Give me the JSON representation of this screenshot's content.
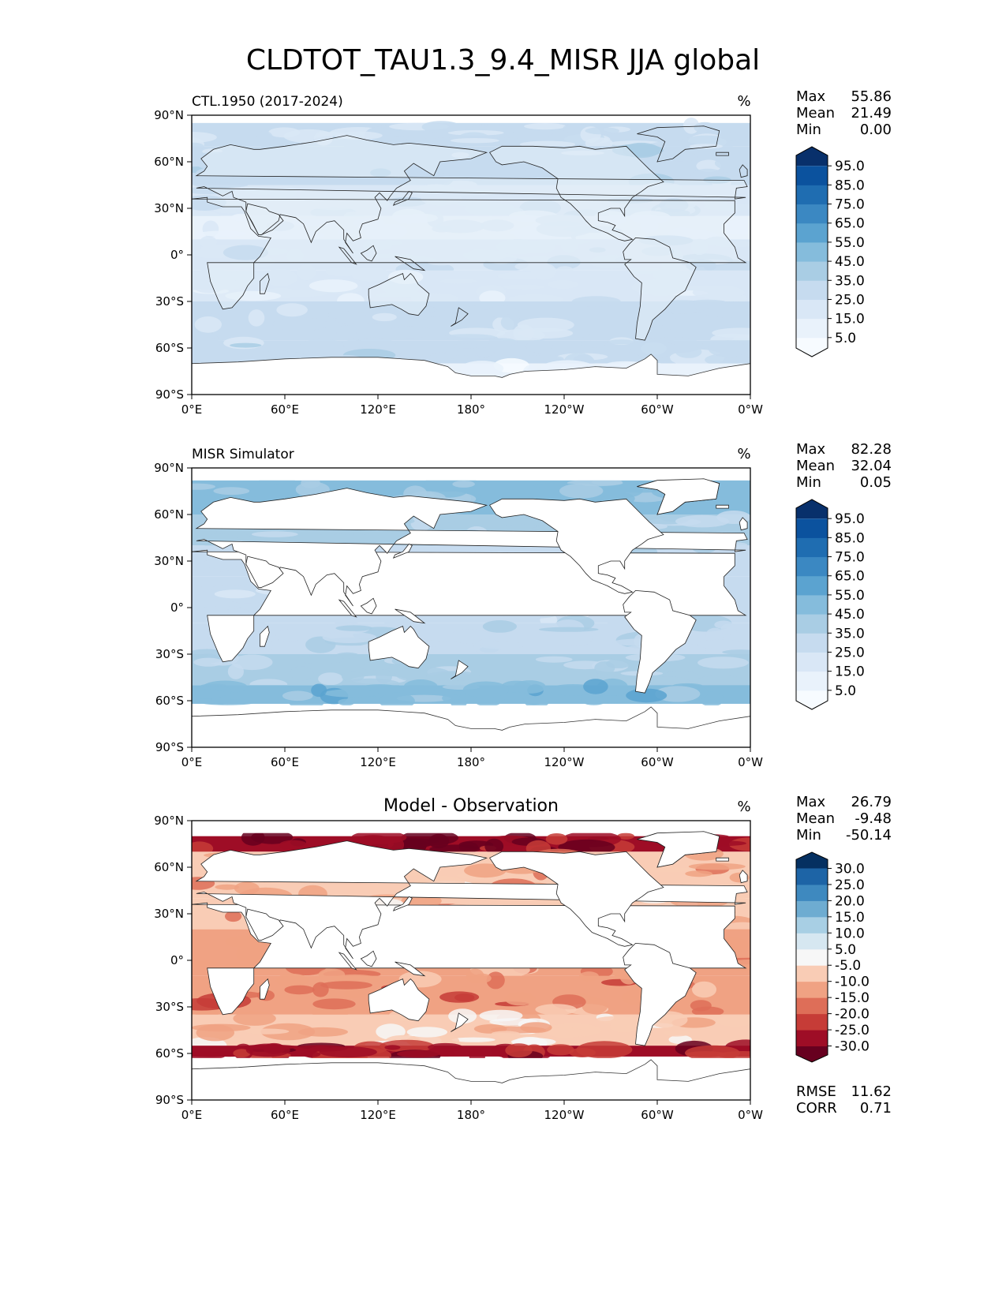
{
  "title": "CLDTOT_TAU1.3_9.4_MISR JJA global",
  "lat_ticks": [
    "90°N",
    "60°N",
    "30°N",
    "0°",
    "30°S",
    "60°S",
    "90°S"
  ],
  "lon_ticks": [
    "0°E",
    "60°E",
    "120°E",
    "180°",
    "120°W",
    "60°W",
    "0°W"
  ],
  "panels": [
    {
      "name": "model",
      "label": "CTL.1950 (2017-2024)",
      "units": "%",
      "stats": [
        {
          "label": "Max",
          "value": "55.86"
        },
        {
          "label": "Mean",
          "value": "21.49"
        },
        {
          "label": "Min",
          "value": "0.00"
        }
      ],
      "colorbar": {
        "ticks": [
          "95.0",
          "85.0",
          "75.0",
          "65.0",
          "55.0",
          "45.0",
          "35.0",
          "25.0",
          "15.0",
          "5.0"
        ],
        "colors": [
          "#f7fbff",
          "#e9f2fb",
          "#d9e7f6",
          "#c6dbef",
          "#a9cde4",
          "#85bcdc",
          "#5ba3d0",
          "#3b88c2",
          "#1f6db1",
          "#0b529e",
          "#08306b"
        ]
      }
    },
    {
      "name": "observation",
      "label": "MISR Simulator",
      "units": "%",
      "stats": [
        {
          "label": "Max",
          "value": "82.28"
        },
        {
          "label": "Mean",
          "value": "32.04"
        },
        {
          "label": "Min",
          "value": "0.05"
        }
      ],
      "colorbar": {
        "ticks": [
          "95.0",
          "85.0",
          "75.0",
          "65.0",
          "55.0",
          "45.0",
          "35.0",
          "25.0",
          "15.0",
          "5.0"
        ],
        "colors": [
          "#f7fbff",
          "#e9f2fb",
          "#d9e7f6",
          "#c6dbef",
          "#a9cde4",
          "#85bcdc",
          "#5ba3d0",
          "#3b88c2",
          "#1f6db1",
          "#0b529e",
          "#08306b"
        ]
      }
    },
    {
      "name": "difference",
      "label": "Model - Observation",
      "units": "%",
      "stats": [
        {
          "label": "Max",
          "value": "26.79"
        },
        {
          "label": "Mean",
          "value": "-9.48"
        },
        {
          "label": "Min",
          "value": "-50.14"
        }
      ],
      "colorbar": {
        "ticks": [
          "30.0",
          "25.0",
          "20.0",
          "15.0",
          "10.0",
          "5.0",
          "-5.0",
          "-10.0",
          "-15.0",
          "-20.0",
          "-25.0",
          "-30.0"
        ],
        "colors": [
          "#67001f",
          "#9e0d26",
          "#c63c37",
          "#de6e58",
          "#f0a283",
          "#f9ccb5",
          "#f7f7f7",
          "#d6e7f1",
          "#a8cfe4",
          "#6eacd1",
          "#3e89bf",
          "#1d64a6",
          "#053061"
        ]
      },
      "extra_stats": [
        {
          "label": "RMSE",
          "value": "11.62"
        },
        {
          "label": "CORR",
          "value": "0.71"
        }
      ]
    }
  ],
  "chart_data": [
    {
      "type": "heatmap",
      "title": "CTL.1950 (2017-2024)",
      "units": "%",
      "xlabel": "",
      "ylabel": "",
      "xlim": [
        0,
        360
      ],
      "ylim": [
        -90,
        90
      ],
      "stats": {
        "max": 55.86,
        "mean": 21.49,
        "min": 0.0
      },
      "levels": [
        5,
        15,
        25,
        35,
        45,
        55,
        65,
        75,
        85,
        95
      ],
      "colormap": "Blues",
      "zonal_bands": [
        {
          "lat": [
            70,
            85
          ],
          "value": 25
        },
        {
          "lat": [
            45,
            70
          ],
          "value": 30
        },
        {
          "lat": [
            25,
            45
          ],
          "value": 22
        },
        {
          "lat": [
            10,
            25
          ],
          "value": 14
        },
        {
          "lat": [
            -10,
            10
          ],
          "value": 22
        },
        {
          "lat": [
            -30,
            -10
          ],
          "value": 18
        },
        {
          "lat": [
            -55,
            -30
          ],
          "value": 28
        },
        {
          "lat": [
            -70,
            -55
          ],
          "value": 30
        },
        {
          "lat": [
            -85,
            -70
          ],
          "value": 8
        }
      ]
    },
    {
      "type": "heatmap",
      "title": "MISR Simulator",
      "units": "%",
      "xlabel": "",
      "ylabel": "",
      "xlim": [
        0,
        360
      ],
      "ylim": [
        -90,
        90
      ],
      "stats": {
        "max": 82.28,
        "mean": 32.04,
        "min": 0.05
      },
      "levels": [
        5,
        15,
        25,
        35,
        45,
        55,
        65,
        75,
        85,
        95
      ],
      "colormap": "Blues",
      "zonal_bands": [
        {
          "lat": [
            60,
            82
          ],
          "value": 45
        },
        {
          "lat": [
            40,
            60
          ],
          "value": 35
        },
        {
          "lat": [
            20,
            40
          ],
          "value": 30
        },
        {
          "lat": [
            -10,
            20
          ],
          "value": 28
        },
        {
          "lat": [
            -30,
            -10
          ],
          "value": 32
        },
        {
          "lat": [
            -50,
            -30
          ],
          "value": 38
        },
        {
          "lat": [
            -62,
            -50
          ],
          "value": 50
        }
      ]
    },
    {
      "type": "heatmap",
      "title": "Model - Observation",
      "units": "%",
      "xlabel": "",
      "ylabel": "",
      "xlim": [
        0,
        360
      ],
      "ylim": [
        -90,
        90
      ],
      "stats": {
        "max": 26.79,
        "mean": -9.48,
        "min": -50.14,
        "rmse": 11.62,
        "corr": 0.71
      },
      "levels": [
        -30,
        -25,
        -20,
        -15,
        -10,
        -5,
        5,
        10,
        15,
        20,
        25,
        30
      ],
      "colormap": "RdBu",
      "zonal_bands": [
        {
          "lat": [
            70,
            80
          ],
          "value": -28
        },
        {
          "lat": [
            40,
            70
          ],
          "value": -10
        },
        {
          "lat": [
            20,
            40
          ],
          "value": -8
        },
        {
          "lat": [
            -10,
            20
          ],
          "value": -12
        },
        {
          "lat": [
            -35,
            -10
          ],
          "value": -14
        },
        {
          "lat": [
            -55,
            -35
          ],
          "value": -6
        },
        {
          "lat": [
            -62,
            -55
          ],
          "value": -26
        }
      ]
    }
  ]
}
